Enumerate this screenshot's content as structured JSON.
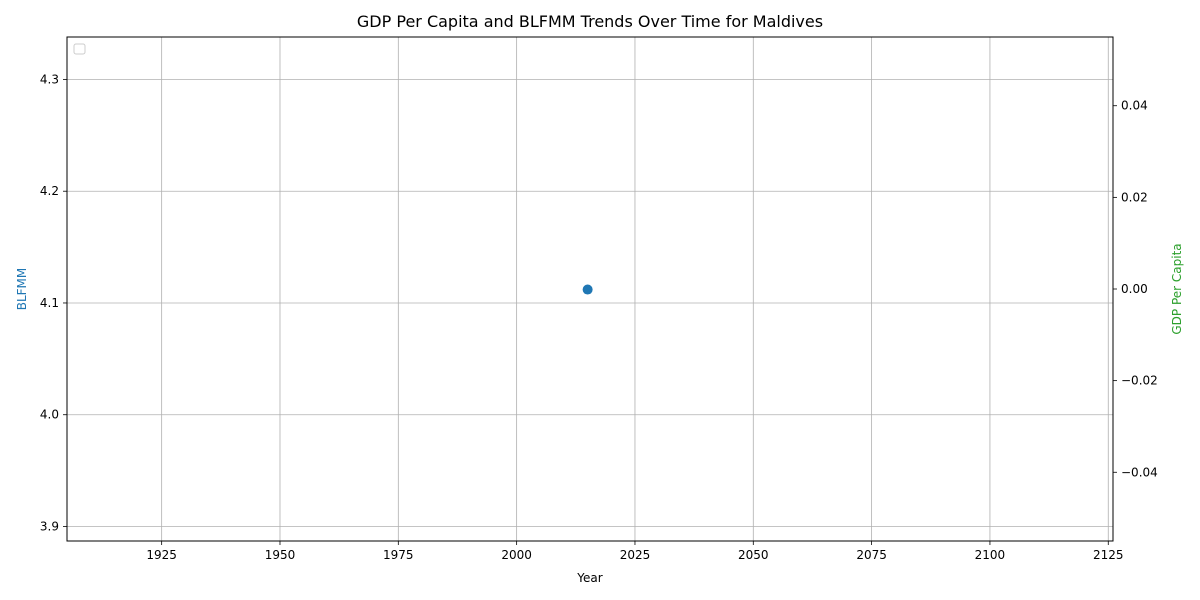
{
  "chart_data": {
    "type": "scatter",
    "title": "GDP Per Capita and BLFMM Trends Over Time for Maldives",
    "xlabel": "Year",
    "ylabel_left": "BLFMM",
    "ylabel_right": "GDP Per Capita",
    "xlim": [
      1905,
      2126
    ],
    "ylim_left": [
      3.887,
      4.338
    ],
    "ylim_right": [
      -0.055,
      0.055
    ],
    "x_ticks": [
      1925,
      1950,
      1975,
      2000,
      2025,
      2050,
      2075,
      2100,
      2125
    ],
    "y_left_ticks": [
      3.9,
      4.0,
      4.1,
      4.2,
      4.3
    ],
    "y_right_ticks": [
      0.04,
      0.02,
      0.0,
      -0.02,
      -0.04
    ],
    "y_left_tick_labels": [
      "3.9",
      "4.0",
      "4.1",
      "4.2",
      "4.3"
    ],
    "y_right_tick_labels": [
      "0.04",
      "0.02",
      "0.00",
      "−0.02",
      "−0.04"
    ],
    "grid": true,
    "legend": {
      "placement": "top-left",
      "entries": []
    },
    "colors": {
      "blfmm": "#1f77b4",
      "gdp": "#2ca02c",
      "grid": "#b0b0b0"
    },
    "series": [
      {
        "name": "BLFMM",
        "axis": "left",
        "color": "#1f77b4",
        "points": [
          {
            "x": 2015,
            "y": 4.112
          }
        ]
      }
    ]
  }
}
